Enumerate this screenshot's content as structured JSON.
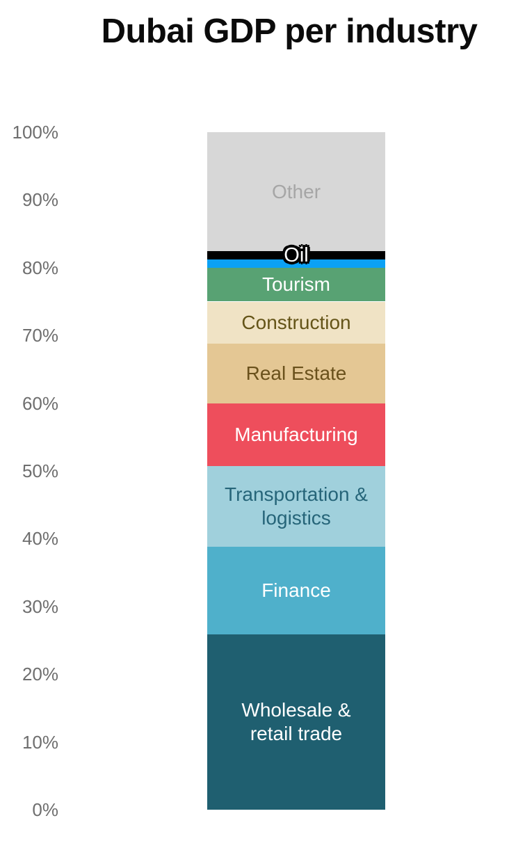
{
  "title": "Dubai GDP per industry",
  "chart_data": {
    "type": "bar",
    "variant": "single-stacked-percentage-column",
    "title": "Dubai GDP per industry",
    "xlabel": "",
    "ylabel": "",
    "unit": "percent",
    "ylim": [
      0,
      100
    ],
    "grid": false,
    "legend": "labels-inside-segments",
    "segments": [
      {
        "label": "Wholesale & retail trade",
        "value": 26,
        "span_pct": [
          0,
          25.9
        ],
        "color": "#1f5f70",
        "label_color": "#ffffff",
        "label_lines": [
          "Wholesale &",
          "retail trade"
        ]
      },
      {
        "label": "Finance",
        "value": 13,
        "span_pct": [
          25.9,
          38.8
        ],
        "color": "#4fb0cb",
        "label_color": "#ffffff",
        "label_lines": [
          "Finance"
        ]
      },
      {
        "label": "Transportation & logistics",
        "value": 12,
        "span_pct": [
          38.8,
          50.7
        ],
        "color": "#a0d0dc",
        "label_color": "#266579",
        "label_lines": [
          "Transportation &",
          "logistics"
        ]
      },
      {
        "label": "Manufacturing",
        "value": 9,
        "span_pct": [
          50.7,
          60
        ],
        "color": "#ee4e5c",
        "label_color": "#ffffff",
        "label_lines": [
          "Manufacturing"
        ]
      },
      {
        "label": "Real Estate",
        "value": 9,
        "span_pct": [
          60,
          68.8
        ],
        "color": "#e4c794",
        "label_color": "#6a511c",
        "label_lines": [
          "Real Estate"
        ]
      },
      {
        "label": "Construction",
        "value": 6,
        "span_pct": [
          68.8,
          75
        ],
        "color": "#f0e3c5",
        "label_color": "#645418",
        "label_lines": [
          "Construction"
        ]
      },
      {
        "label": "Tourism",
        "value": 5,
        "span_pct": [
          75,
          80
        ],
        "color": "#58a273",
        "label_color": "#ffffff",
        "label_lines": [
          "Tourism"
        ]
      },
      {
        "label": "Oil",
        "value": 2,
        "span_pct": [
          80,
          82.4
        ],
        "color": "#0ba1f5",
        "marker_span_pct": [
          81.2,
          82.4
        ],
        "marker_color": "#000000",
        "label_color": "#ffffff",
        "label_outline_color": "#000000",
        "label_lines": [
          "Oil"
        ]
      },
      {
        "label": "Other",
        "value": 18,
        "span_pct": [
          82.4,
          100
        ],
        "color": "#d7d7d7",
        "label_color": "#a6a6a6",
        "label_lines": [
          "Other"
        ]
      }
    ]
  },
  "y_axis": {
    "tick_labels": [
      "100%",
      "90%",
      "80%",
      "70%",
      "60%",
      "50%",
      "40%",
      "30%",
      "20%",
      "10%",
      "0%"
    ],
    "tick_values": [
      100,
      90,
      80,
      70,
      60,
      50,
      40,
      30,
      20,
      10,
      0
    ],
    "text_color": "#6e6e6e"
  }
}
